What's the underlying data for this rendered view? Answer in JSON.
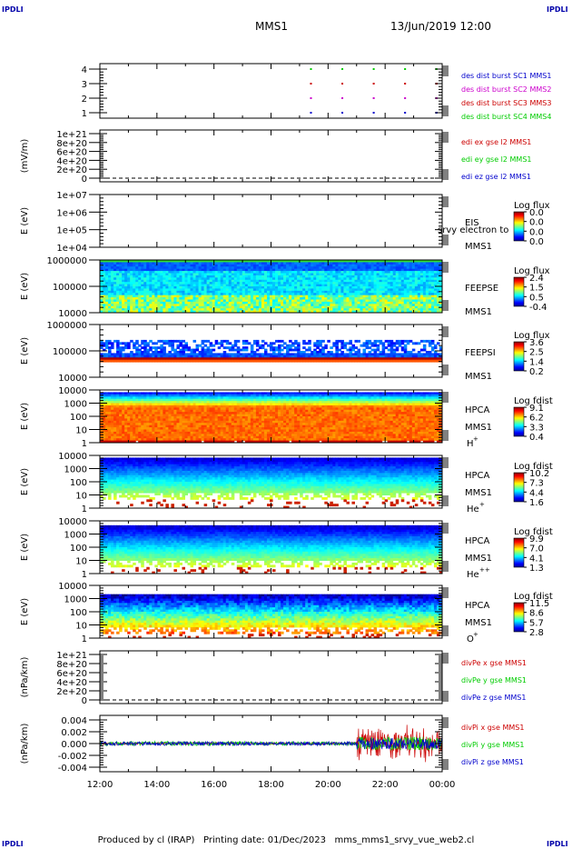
{
  "header": {
    "spacecraft": "MMS1",
    "datetime": "13/Jun/2019 12:00",
    "corner_label": "IPDLI"
  },
  "footer": {
    "text": "Produced by cl (IRAP)   Printing date: 01/Dec/2023   mms_mms1_srvy_vue_web2.cl"
  },
  "colors": {
    "red": "#cc0000",
    "green": "#00cc00",
    "blue": "#0000cc",
    "magenta": "#cc00cc",
    "corner": "#0000aa"
  },
  "chart_data": [
    {
      "id": "burst",
      "type": "scatter",
      "yticks": [
        "1",
        "2",
        "3",
        "4"
      ],
      "legend": [
        {
          "text": "des dist burst SC1 MMS1",
          "color": "#0000cc"
        },
        {
          "text": "des dist burst SC2 MMS2",
          "color": "#cc00cc"
        },
        {
          "text": "des dist burst SC3 MMS3",
          "color": "#cc0000"
        },
        {
          "text": "des dist burst SC4 MMS4",
          "color": "#00cc00"
        }
      ],
      "burst_times_hours": [
        19.4,
        20.5,
        21.6,
        22.7,
        23.8
      ],
      "series": [
        {
          "level": 1,
          "color": "#0000cc"
        },
        {
          "level": 2,
          "color": "#cc00cc"
        },
        {
          "level": 3,
          "color": "#cc0000"
        },
        {
          "level": 4,
          "color": "#00cc00"
        }
      ]
    },
    {
      "id": "edi",
      "type": "line",
      "ylabel": "(mV/m)",
      "yticks": [
        "1e+21",
        "8e+20",
        "6e+20",
        "4e+20",
        "2e+20",
        "0"
      ],
      "legend": [
        {
          "text": "edi ex gse l2 MMS1",
          "color": "#cc0000"
        },
        {
          "text": "edi ey gse l2 MMS1",
          "color": "#00cc00"
        },
        {
          "text": "edi ez gse l2 MMS1",
          "color": "#0000cc"
        }
      ]
    },
    {
      "id": "eis",
      "type": "heatmap",
      "ylabel": "E (eV)",
      "yticks": [
        "1e+07",
        "1e+06",
        "1e+05",
        "1e+04"
      ],
      "instrument": "EIS",
      "sc": "MMS1",
      "overlay": "srvy electron to",
      "cbar_title": "Log flux",
      "cbar_ticks": [
        "0.0",
        "0.0",
        "0.0",
        "0.0"
      ]
    },
    {
      "id": "feepse",
      "type": "heatmap",
      "ylabel": "E (eV)",
      "yticks": [
        "1000000",
        "100000",
        "10000"
      ],
      "instrument": "FEEPSE",
      "sc": "MMS1",
      "cbar_title": "Log flux",
      "cbar_ticks": [
        "2.4",
        "1.5",
        "0.5",
        "-0.4"
      ]
    },
    {
      "id": "feepsi",
      "type": "heatmap",
      "ylabel": "E (eV)",
      "yticks": [
        "1000000",
        "100000",
        "10000"
      ],
      "instrument": "FEEPSI",
      "sc": "MMS1",
      "cbar_title": "Log flux",
      "cbar_ticks": [
        "3.6",
        "2.5",
        "1.4",
        "0.2"
      ]
    },
    {
      "id": "hpca_h",
      "type": "heatmap",
      "ylabel": "E (eV)",
      "yticks": [
        "10000",
        "1000",
        "100",
        "10",
        "1"
      ],
      "instrument": "HPCA",
      "sc": "MMS1",
      "species": "H",
      "charge": "+",
      "cbar_title": "Log fdist",
      "cbar_ticks": [
        "9.1",
        "6.2",
        "3.3",
        "0.4"
      ]
    },
    {
      "id": "hpca_he",
      "type": "heatmap",
      "ylabel": "E (eV)",
      "yticks": [
        "10000",
        "1000",
        "100",
        "10",
        "1"
      ],
      "instrument": "HPCA",
      "sc": "MMS1",
      "species": "He",
      "charge": "+",
      "cbar_title": "Log fdist",
      "cbar_ticks": [
        "10.2",
        "7.3",
        "4.4",
        "1.6"
      ]
    },
    {
      "id": "hpca_hepp",
      "type": "heatmap",
      "ylabel": "E (eV)",
      "yticks": [
        "10000",
        "1000",
        "100",
        "10",
        "1"
      ],
      "instrument": "HPCA",
      "sc": "MMS1",
      "species": "He",
      "charge": "++",
      "cbar_title": "Log fdist",
      "cbar_ticks": [
        "9.9",
        "7.0",
        "4.1",
        "1.3"
      ]
    },
    {
      "id": "hpca_o",
      "type": "heatmap",
      "ylabel": "E (eV)",
      "yticks": [
        "10000",
        "1000",
        "100",
        "10",
        "1"
      ],
      "instrument": "HPCA",
      "sc": "MMS1",
      "species": "O",
      "charge": "+",
      "cbar_title": "Log fdist",
      "cbar_ticks": [
        "11.5",
        "8.6",
        "5.7",
        "2.8"
      ]
    },
    {
      "id": "divpe",
      "type": "line",
      "ylabel": "(nPa/km)",
      "yticks": [
        "1e+21",
        "8e+20",
        "6e+20",
        "4e+20",
        "2e+20",
        "0"
      ],
      "legend": [
        {
          "text": "divPe x gse MMS1",
          "color": "#cc0000"
        },
        {
          "text": "divPe y gse MMS1",
          "color": "#00cc00"
        },
        {
          "text": "divPe z gse MMS1",
          "color": "#0000cc"
        }
      ]
    },
    {
      "id": "divpi",
      "type": "line",
      "ylabel": "(nPa/km)",
      "yticks": [
        "0.004",
        "0.002",
        "0.000",
        "-0.002",
        "-0.004"
      ],
      "ylim": [
        -0.005,
        0.005
      ],
      "legend": [
        {
          "text": "divPi x gse MMS1",
          "color": "#cc0000"
        },
        {
          "text": "divPi y gse MMS1",
          "color": "#00cc00"
        },
        {
          "text": "divPi z gse MMS1",
          "color": "#0000cc"
        }
      ]
    }
  ],
  "time_axis": {
    "range_hours": [
      12,
      24
    ],
    "ticks": [
      "12:00",
      "14:00",
      "16:00",
      "18:00",
      "20:00",
      "22:00",
      "00:00"
    ]
  }
}
